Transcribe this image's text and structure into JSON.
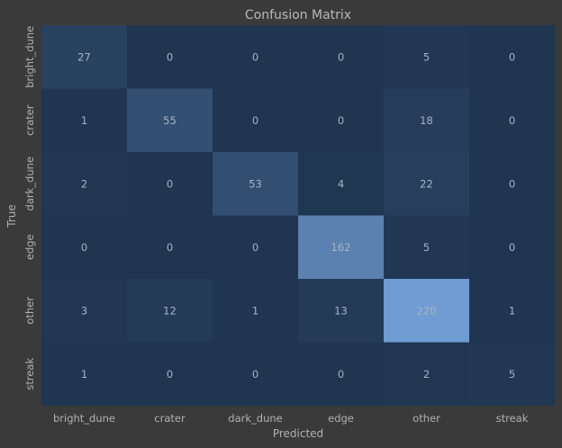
{
  "chart_data": {
    "type": "heatmap",
    "title": "Confusion Matrix",
    "xlabel": "Predicted",
    "ylabel": "True",
    "x_categories": [
      "bright_dune",
      "crater",
      "dark_dune",
      "edge",
      "other",
      "streak"
    ],
    "y_categories": [
      "bright_dune",
      "crater",
      "dark_dune",
      "edge",
      "other",
      "streak"
    ],
    "values": [
      [
        27,
        0,
        0,
        0,
        5,
        0
      ],
      [
        1,
        55,
        0,
        0,
        18,
        0
      ],
      [
        2,
        0,
        53,
        4,
        22,
        0
      ],
      [
        0,
        0,
        0,
        162,
        5,
        0
      ],
      [
        3,
        12,
        1,
        13,
        220,
        1
      ],
      [
        1,
        0,
        0,
        0,
        2,
        5
      ]
    ],
    "value_range": [
      0,
      220
    ],
    "colors": {
      "low": "#1f3550",
      "high": "#6f9cd3",
      "background": "#3a3a3a",
      "text": "#b0b0b0"
    }
  }
}
